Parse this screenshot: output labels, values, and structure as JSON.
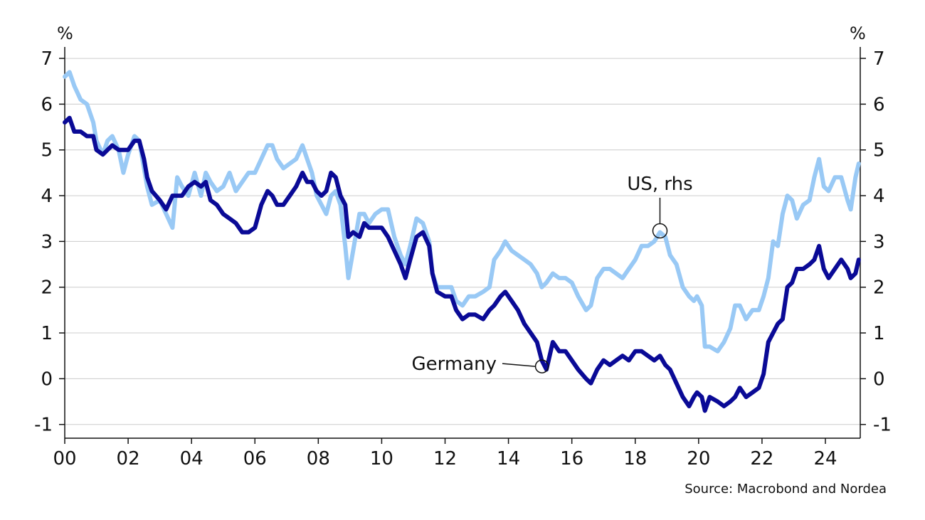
{
  "chart_data": {
    "type": "line",
    "left_unit": "%",
    "right_unit": "%",
    "x_ticks": [
      "00",
      "02",
      "04",
      "06",
      "08",
      "10",
      "12",
      "14",
      "16",
      "18",
      "20",
      "22",
      "24"
    ],
    "x_tick_values": [
      2000,
      2002,
      2004,
      2006,
      2008,
      2010,
      2012,
      2014,
      2016,
      2018,
      2020,
      2022,
      2024
    ],
    "xlim": [
      2000,
      2025.1
    ],
    "y_ticks": [
      "-1",
      "0",
      "1",
      "2",
      "3",
      "4",
      "5",
      "6",
      "7"
    ],
    "y_tick_values": [
      -1,
      0,
      1,
      2,
      3,
      4,
      5,
      6,
      7
    ],
    "ylim": [
      -1.3,
      7.25
    ],
    "grid": true,
    "series": [
      {
        "name": "US, rhs",
        "axis": "right",
        "color": "#99c9f5",
        "points": [
          [
            2000.0,
            6.6
          ],
          [
            2000.15,
            6.7
          ],
          [
            2000.3,
            6.4
          ],
          [
            2000.5,
            6.1
          ],
          [
            2000.7,
            6.0
          ],
          [
            2000.9,
            5.6
          ],
          [
            2001.0,
            5.2
          ],
          [
            2001.2,
            4.9
          ],
          [
            2001.35,
            5.2
          ],
          [
            2001.5,
            5.3
          ],
          [
            2001.7,
            5.0
          ],
          [
            2001.85,
            4.5
          ],
          [
            2002.0,
            4.9
          ],
          [
            2002.2,
            5.3
          ],
          [
            2002.35,
            5.2
          ],
          [
            2002.5,
            4.6
          ],
          [
            2002.6,
            4.2
          ],
          [
            2002.75,
            3.8
          ],
          [
            2003.0,
            3.9
          ],
          [
            2003.2,
            3.6
          ],
          [
            2003.4,
            3.3
          ],
          [
            2003.55,
            4.4
          ],
          [
            2003.7,
            4.2
          ],
          [
            2003.9,
            4.0
          ],
          [
            2004.1,
            4.5
          ],
          [
            2004.3,
            4.0
          ],
          [
            2004.45,
            4.5
          ],
          [
            2004.6,
            4.3
          ],
          [
            2004.8,
            4.1
          ],
          [
            2005.0,
            4.2
          ],
          [
            2005.2,
            4.5
          ],
          [
            2005.4,
            4.1
          ],
          [
            2005.6,
            4.3
          ],
          [
            2005.8,
            4.5
          ],
          [
            2006.0,
            4.5
          ],
          [
            2006.2,
            4.8
          ],
          [
            2006.4,
            5.1
          ],
          [
            2006.55,
            5.1
          ],
          [
            2006.7,
            4.8
          ],
          [
            2006.9,
            4.6
          ],
          [
            2007.1,
            4.7
          ],
          [
            2007.3,
            4.8
          ],
          [
            2007.5,
            5.1
          ],
          [
            2007.65,
            4.8
          ],
          [
            2007.8,
            4.5
          ],
          [
            2007.95,
            4.0
          ],
          [
            2008.1,
            3.8
          ],
          [
            2008.25,
            3.6
          ],
          [
            2008.4,
            4.0
          ],
          [
            2008.55,
            4.1
          ],
          [
            2008.7,
            3.8
          ],
          [
            2008.85,
            2.9
          ],
          [
            2008.95,
            2.2
          ],
          [
            2009.1,
            2.8
          ],
          [
            2009.3,
            3.6
          ],
          [
            2009.45,
            3.6
          ],
          [
            2009.6,
            3.4
          ],
          [
            2009.8,
            3.6
          ],
          [
            2010.0,
            3.7
          ],
          [
            2010.2,
            3.7
          ],
          [
            2010.4,
            3.1
          ],
          [
            2010.6,
            2.7
          ],
          [
            2010.75,
            2.5
          ],
          [
            2010.9,
            2.9
          ],
          [
            2011.1,
            3.5
          ],
          [
            2011.3,
            3.4
          ],
          [
            2011.5,
            3.0
          ],
          [
            2011.6,
            2.3
          ],
          [
            2011.75,
            2.0
          ],
          [
            2012.0,
            2.0
          ],
          [
            2012.2,
            2.0
          ],
          [
            2012.35,
            1.7
          ],
          [
            2012.55,
            1.6
          ],
          [
            2012.75,
            1.8
          ],
          [
            2012.95,
            1.8
          ],
          [
            2013.2,
            1.9
          ],
          [
            2013.4,
            2.0
          ],
          [
            2013.55,
            2.6
          ],
          [
            2013.75,
            2.8
          ],
          [
            2013.9,
            3.0
          ],
          [
            2014.1,
            2.8
          ],
          [
            2014.3,
            2.7
          ],
          [
            2014.5,
            2.6
          ],
          [
            2014.7,
            2.5
          ],
          [
            2014.9,
            2.3
          ],
          [
            2015.05,
            2.0
          ],
          [
            2015.2,
            2.1
          ],
          [
            2015.4,
            2.3
          ],
          [
            2015.6,
            2.2
          ],
          [
            2015.8,
            2.2
          ],
          [
            2016.0,
            2.1
          ],
          [
            2016.2,
            1.8
          ],
          [
            2016.45,
            1.5
          ],
          [
            2016.6,
            1.6
          ],
          [
            2016.8,
            2.2
          ],
          [
            2017.0,
            2.4
          ],
          [
            2017.2,
            2.4
          ],
          [
            2017.4,
            2.3
          ],
          [
            2017.6,
            2.2
          ],
          [
            2017.8,
            2.4
          ],
          [
            2018.0,
            2.6
          ],
          [
            2018.2,
            2.9
          ],
          [
            2018.4,
            2.9
          ],
          [
            2018.6,
            3.0
          ],
          [
            2018.78,
            3.2
          ],
          [
            2018.95,
            3.1
          ],
          [
            2019.1,
            2.7
          ],
          [
            2019.3,
            2.5
          ],
          [
            2019.5,
            2.0
          ],
          [
            2019.7,
            1.8
          ],
          [
            2019.85,
            1.7
          ],
          [
            2019.95,
            1.8
          ],
          [
            2020.1,
            1.6
          ],
          [
            2020.2,
            0.7
          ],
          [
            2020.35,
            0.7
          ],
          [
            2020.6,
            0.6
          ],
          [
            2020.8,
            0.8
          ],
          [
            2021.0,
            1.1
          ],
          [
            2021.15,
            1.6
          ],
          [
            2021.3,
            1.6
          ],
          [
            2021.5,
            1.3
          ],
          [
            2021.7,
            1.5
          ],
          [
            2021.9,
            1.5
          ],
          [
            2022.05,
            1.8
          ],
          [
            2022.2,
            2.2
          ],
          [
            2022.35,
            3.0
          ],
          [
            2022.5,
            2.9
          ],
          [
            2022.65,
            3.6
          ],
          [
            2022.8,
            4.0
          ],
          [
            2022.95,
            3.9
          ],
          [
            2023.1,
            3.5
          ],
          [
            2023.3,
            3.8
          ],
          [
            2023.5,
            3.9
          ],
          [
            2023.65,
            4.4
          ],
          [
            2023.8,
            4.8
          ],
          [
            2023.95,
            4.2
          ],
          [
            2024.1,
            4.1
          ],
          [
            2024.3,
            4.4
          ],
          [
            2024.5,
            4.4
          ],
          [
            2024.7,
            3.9
          ],
          [
            2024.8,
            3.7
          ],
          [
            2024.95,
            4.4
          ],
          [
            2025.05,
            4.7
          ]
        ]
      },
      {
        "name": "Germany",
        "axis": "left",
        "color": "#0a0a96",
        "points": [
          [
            2000.0,
            5.6
          ],
          [
            2000.15,
            5.7
          ],
          [
            2000.3,
            5.4
          ],
          [
            2000.5,
            5.4
          ],
          [
            2000.7,
            5.3
          ],
          [
            2000.9,
            5.3
          ],
          [
            2001.0,
            5.0
          ],
          [
            2001.2,
            4.9
          ],
          [
            2001.35,
            5.0
          ],
          [
            2001.5,
            5.1
          ],
          [
            2001.7,
            5.0
          ],
          [
            2001.85,
            5.0
          ],
          [
            2002.0,
            5.0
          ],
          [
            2002.2,
            5.2
          ],
          [
            2002.35,
            5.2
          ],
          [
            2002.5,
            4.8
          ],
          [
            2002.6,
            4.4
          ],
          [
            2002.75,
            4.1
          ],
          [
            2003.0,
            3.9
          ],
          [
            2003.2,
            3.7
          ],
          [
            2003.4,
            4.0
          ],
          [
            2003.55,
            4.0
          ],
          [
            2003.7,
            4.0
          ],
          [
            2003.9,
            4.2
          ],
          [
            2004.1,
            4.3
          ],
          [
            2004.3,
            4.2
          ],
          [
            2004.45,
            4.3
          ],
          [
            2004.6,
            3.9
          ],
          [
            2004.8,
            3.8
          ],
          [
            2005.0,
            3.6
          ],
          [
            2005.2,
            3.5
          ],
          [
            2005.4,
            3.4
          ],
          [
            2005.6,
            3.2
          ],
          [
            2005.8,
            3.2
          ],
          [
            2006.0,
            3.3
          ],
          [
            2006.2,
            3.8
          ],
          [
            2006.4,
            4.1
          ],
          [
            2006.55,
            4.0
          ],
          [
            2006.7,
            3.8
          ],
          [
            2006.9,
            3.8
          ],
          [
            2007.1,
            4.0
          ],
          [
            2007.3,
            4.2
          ],
          [
            2007.5,
            4.5
          ],
          [
            2007.65,
            4.3
          ],
          [
            2007.8,
            4.3
          ],
          [
            2007.95,
            4.1
          ],
          [
            2008.1,
            4.0
          ],
          [
            2008.25,
            4.1
          ],
          [
            2008.4,
            4.5
          ],
          [
            2008.55,
            4.4
          ],
          [
            2008.7,
            4.0
          ],
          [
            2008.85,
            3.8
          ],
          [
            2008.95,
            3.1
          ],
          [
            2009.1,
            3.2
          ],
          [
            2009.3,
            3.1
          ],
          [
            2009.45,
            3.4
          ],
          [
            2009.6,
            3.3
          ],
          [
            2009.8,
            3.3
          ],
          [
            2010.0,
            3.3
          ],
          [
            2010.2,
            3.1
          ],
          [
            2010.4,
            2.8
          ],
          [
            2010.6,
            2.5
          ],
          [
            2010.75,
            2.2
          ],
          [
            2010.9,
            2.6
          ],
          [
            2011.1,
            3.1
          ],
          [
            2011.3,
            3.2
          ],
          [
            2011.5,
            2.9
          ],
          [
            2011.6,
            2.3
          ],
          [
            2011.75,
            1.9
          ],
          [
            2012.0,
            1.8
          ],
          [
            2012.2,
            1.8
          ],
          [
            2012.35,
            1.5
          ],
          [
            2012.55,
            1.3
          ],
          [
            2012.75,
            1.4
          ],
          [
            2012.95,
            1.4
          ],
          [
            2013.2,
            1.3
          ],
          [
            2013.4,
            1.5
          ],
          [
            2013.55,
            1.6
          ],
          [
            2013.75,
            1.8
          ],
          [
            2013.9,
            1.9
          ],
          [
            2014.1,
            1.7
          ],
          [
            2014.3,
            1.5
          ],
          [
            2014.5,
            1.2
          ],
          [
            2014.7,
            1.0
          ],
          [
            2014.9,
            0.8
          ],
          [
            2015.05,
            0.4
          ],
          [
            2015.2,
            0.2
          ],
          [
            2015.4,
            0.8
          ],
          [
            2015.6,
            0.6
          ],
          [
            2015.8,
            0.6
          ],
          [
            2016.0,
            0.4
          ],
          [
            2016.2,
            0.2
          ],
          [
            2016.45,
            0.0
          ],
          [
            2016.6,
            -0.1
          ],
          [
            2016.8,
            0.2
          ],
          [
            2017.0,
            0.4
          ],
          [
            2017.2,
            0.3
          ],
          [
            2017.4,
            0.4
          ],
          [
            2017.6,
            0.5
          ],
          [
            2017.8,
            0.4
          ],
          [
            2018.0,
            0.6
          ],
          [
            2018.2,
            0.6
          ],
          [
            2018.4,
            0.5
          ],
          [
            2018.6,
            0.4
          ],
          [
            2018.78,
            0.5
          ],
          [
            2018.95,
            0.3
          ],
          [
            2019.1,
            0.2
          ],
          [
            2019.3,
            -0.1
          ],
          [
            2019.5,
            -0.4
          ],
          [
            2019.7,
            -0.6
          ],
          [
            2019.85,
            -0.4
          ],
          [
            2019.95,
            -0.3
          ],
          [
            2020.1,
            -0.4
          ],
          [
            2020.2,
            -0.7
          ],
          [
            2020.35,
            -0.4
          ],
          [
            2020.6,
            -0.5
          ],
          [
            2020.8,
            -0.6
          ],
          [
            2021.0,
            -0.5
          ],
          [
            2021.15,
            -0.4
          ],
          [
            2021.3,
            -0.2
          ],
          [
            2021.5,
            -0.4
          ],
          [
            2021.7,
            -0.3
          ],
          [
            2021.9,
            -0.2
          ],
          [
            2022.05,
            0.1
          ],
          [
            2022.2,
            0.8
          ],
          [
            2022.35,
            1.0
          ],
          [
            2022.5,
            1.2
          ],
          [
            2022.65,
            1.3
          ],
          [
            2022.8,
            2.0
          ],
          [
            2022.95,
            2.1
          ],
          [
            2023.1,
            2.4
          ],
          [
            2023.3,
            2.4
          ],
          [
            2023.5,
            2.5
          ],
          [
            2023.65,
            2.6
          ],
          [
            2023.8,
            2.9
          ],
          [
            2023.95,
            2.4
          ],
          [
            2024.1,
            2.2
          ],
          [
            2024.3,
            2.4
          ],
          [
            2024.5,
            2.6
          ],
          [
            2024.7,
            2.4
          ],
          [
            2024.8,
            2.2
          ],
          [
            2024.95,
            2.3
          ],
          [
            2025.05,
            2.6
          ]
        ]
      }
    ],
    "annotations": [
      {
        "text": "US, rhs",
        "series": "US, rhs",
        "x": 2018.78,
        "y": 3.2
      },
      {
        "text": "Germany",
        "series": "Germany",
        "x": 2015.1,
        "y": 0.3
      }
    ],
    "source": "Source: Macrobond and Nordea"
  }
}
